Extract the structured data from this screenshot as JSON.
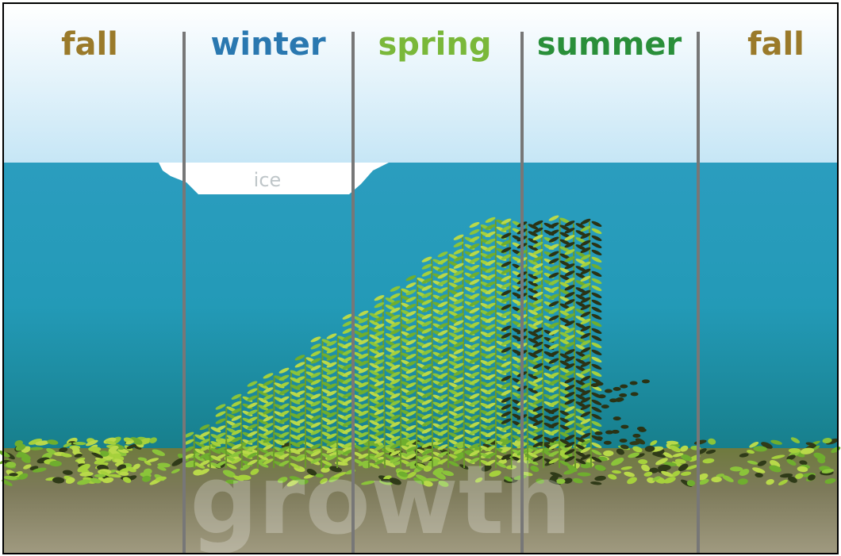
{
  "seasons": [
    "fall",
    "winter",
    "spring",
    "summer",
    "fall"
  ],
  "ice_label": "ice",
  "watermark": "growth"
}
